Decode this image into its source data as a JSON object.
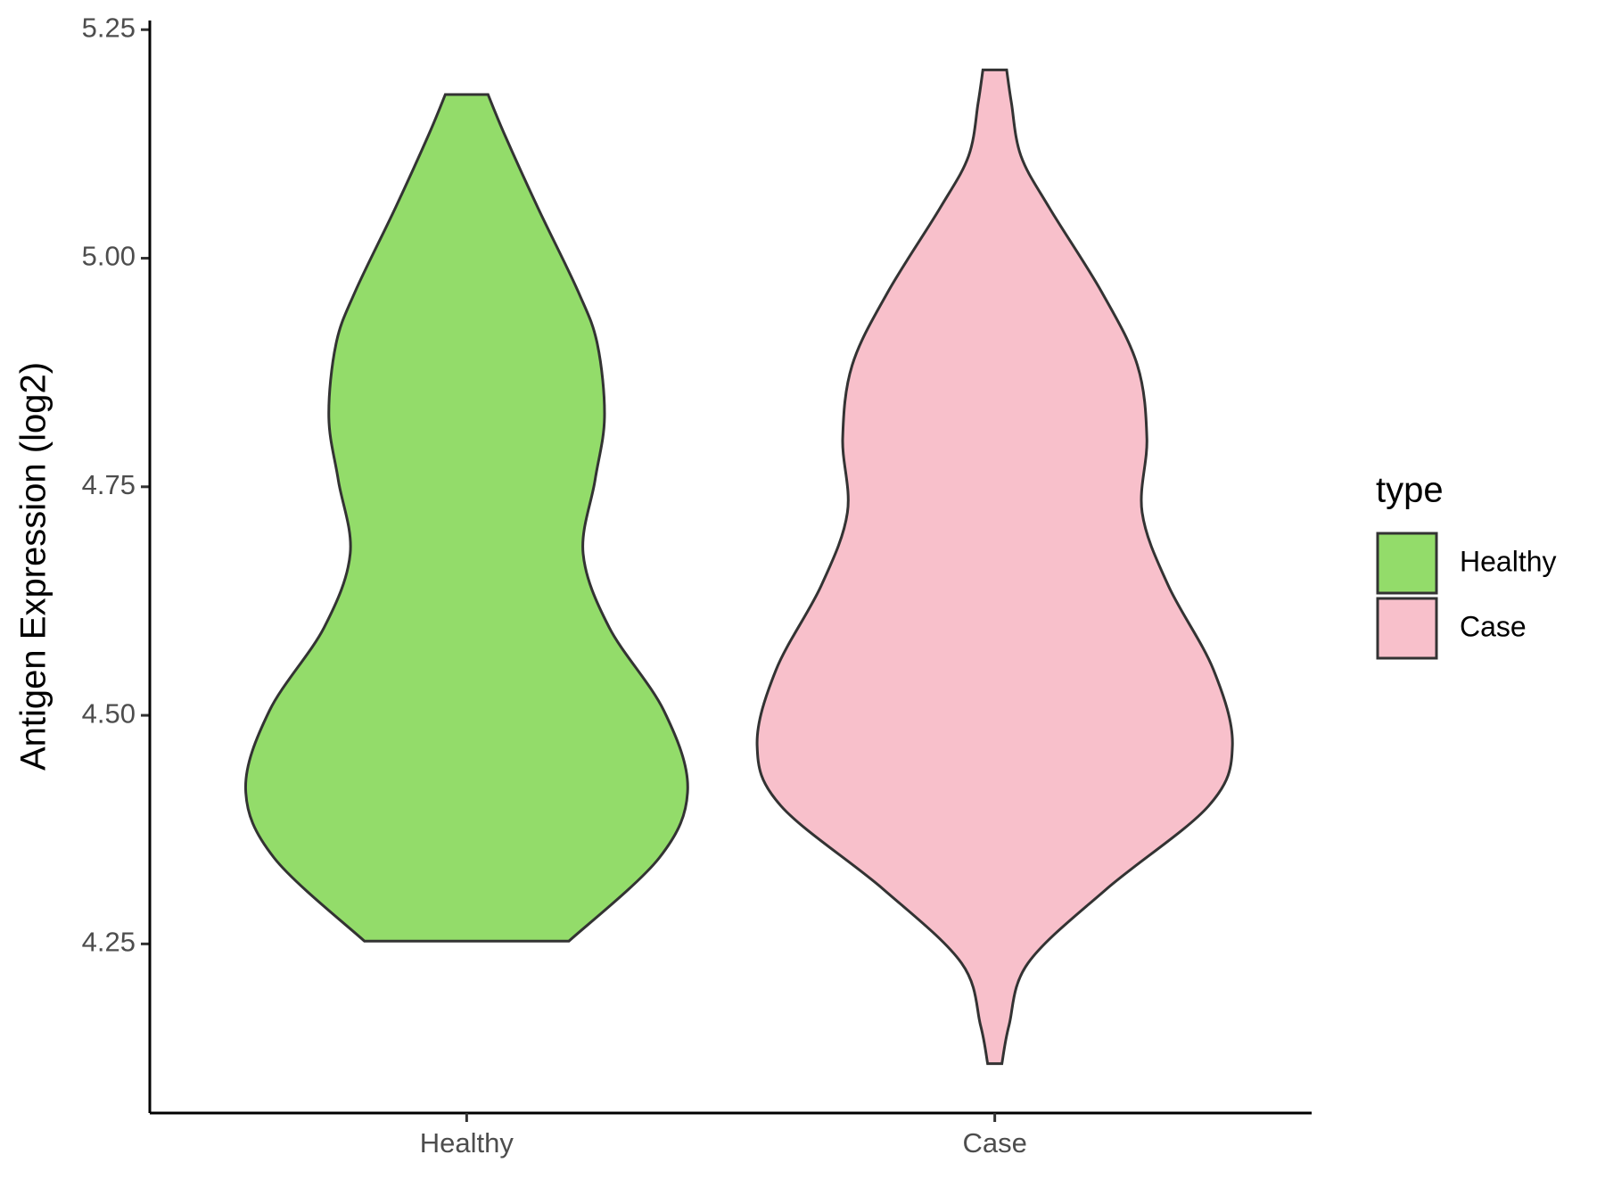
{
  "chart_data": {
    "type": "violin",
    "y_label": "Antigen Expression (log2)",
    "categories": [
      "Healthy",
      "Case"
    ],
    "ylim": [
      4.065,
      5.26
    ],
    "yticks": [
      {
        "value": 4.25,
        "label": "4.25"
      },
      {
        "value": 4.5,
        "label": "4.50"
      },
      {
        "value": 4.75,
        "label": "4.75"
      },
      {
        "value": 5,
        "label": "5.00"
      },
      {
        "value": 5.25,
        "label": "5.25"
      }
    ],
    "legend": {
      "title": "type",
      "position": "right"
    },
    "series": [
      {
        "name": "Healthy",
        "color": "#93dc6a",
        "y": [
          5.179,
          5.135,
          5.055,
          4.963,
          4.906,
          4.826,
          4.757,
          4.677,
          4.596,
          4.505,
          4.419,
          4.344,
          4.253
        ],
        "density": [
          0.09,
          0.16,
          0.3,
          0.47,
          0.55,
          0.58,
          0.54,
          0.49,
          0.6,
          0.83,
          0.93,
          0.81,
          0.43
        ]
      },
      {
        "name": "Case",
        "color": "#f8c0cb",
        "y": [
          5.206,
          5.17,
          5.112,
          5.055,
          4.963,
          4.883,
          4.803,
          4.722,
          4.642,
          4.55,
          4.467,
          4.401,
          4.31,
          4.229,
          4.161,
          4.119
        ],
        "density": [
          0.05,
          0.07,
          0.11,
          0.23,
          0.45,
          0.6,
          0.64,
          0.62,
          0.73,
          0.92,
          1.0,
          0.9,
          0.47,
          0.14,
          0.06,
          0.03
        ]
      }
    ]
  }
}
